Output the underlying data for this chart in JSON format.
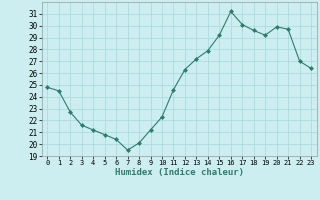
{
  "x": [
    0,
    1,
    2,
    3,
    4,
    5,
    6,
    7,
    8,
    9,
    10,
    11,
    12,
    13,
    14,
    15,
    16,
    17,
    18,
    19,
    20,
    21,
    22,
    23
  ],
  "y": [
    24.8,
    24.5,
    22.7,
    21.6,
    21.2,
    20.8,
    20.4,
    19.5,
    20.1,
    21.2,
    22.3,
    24.6,
    26.3,
    27.2,
    27.9,
    29.2,
    31.2,
    30.1,
    29.6,
    29.2,
    29.9,
    29.7,
    27.0,
    26.4
  ],
  "title": "",
  "xlabel": "Humidex (Indice chaleur)",
  "ylabel": "",
  "line_color": "#2d7d6d",
  "bg_color": "#cceef0",
  "grid_color": "#aadde0",
  "ylim": [
    19,
    32
  ],
  "xlim": [
    -0.5,
    23.5
  ],
  "yticks": [
    19,
    20,
    21,
    22,
    23,
    24,
    25,
    26,
    27,
    28,
    29,
    30,
    31
  ],
  "xticks": [
    0,
    1,
    2,
    3,
    4,
    5,
    6,
    7,
    8,
    9,
    10,
    11,
    12,
    13,
    14,
    15,
    16,
    17,
    18,
    19,
    20,
    21,
    22,
    23
  ]
}
